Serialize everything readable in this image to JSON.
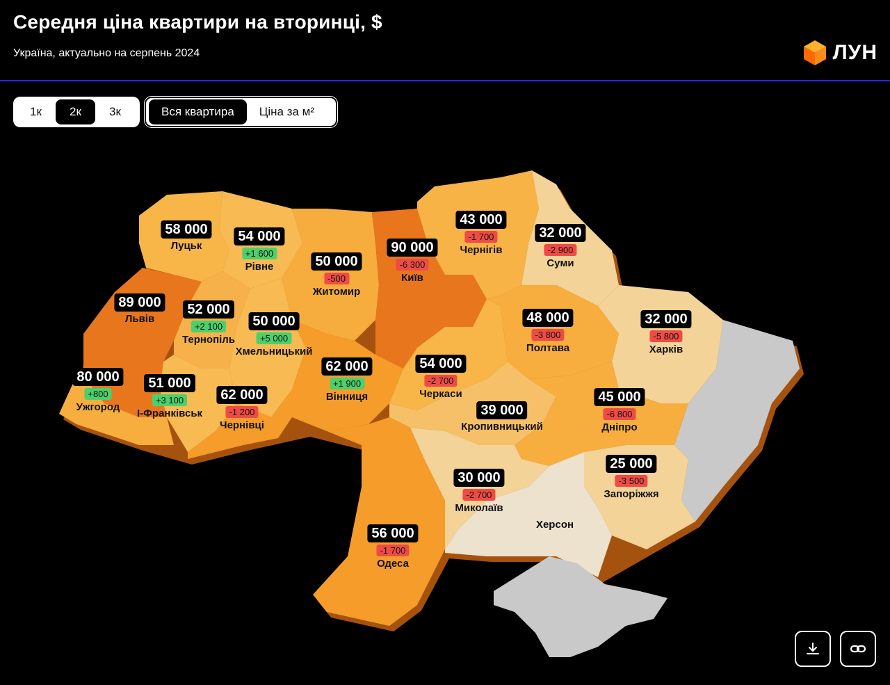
{
  "header": {
    "title": "Середня ціна квартири на вторинці, $",
    "subtitle": "Україна, актуально на серпень 2024",
    "logo_text": "ЛУН"
  },
  "room_tabs": [
    {
      "label": "1к",
      "active": false
    },
    {
      "label": "2к",
      "active": true
    },
    {
      "label": "3к",
      "active": false
    }
  ],
  "mode_tabs": [
    {
      "label": "Вся квартира",
      "active": true
    },
    {
      "label": "Ціна за м²",
      "active": false
    }
  ],
  "colors": {
    "dark_orange": "#e8761c",
    "orange": "#f59c2b",
    "light_orange": "#f8ba52",
    "pale": "#f3d398",
    "cream": "#ede2cd",
    "grey": "#c9c9c9",
    "negative": "#ef4b45",
    "positive": "#4cd06c"
  },
  "regions": [
    {
      "id": "lutsk",
      "price": "58 000",
      "delta": "",
      "city": "Луцьк"
    },
    {
      "id": "rivne",
      "price": "54 000",
      "delta": "+1 600",
      "city": "Рівне"
    },
    {
      "id": "zhytomyr",
      "price": "50 000",
      "delta": "-500",
      "city": "Житомир"
    },
    {
      "id": "kyiv",
      "price": "90 000",
      "delta": "-6 300",
      "city": "Київ"
    },
    {
      "id": "chernihiv",
      "price": "43 000",
      "delta": "-1 700",
      "city": "Чернігів"
    },
    {
      "id": "sumy",
      "price": "32 000",
      "delta": "-2 900",
      "city": "Суми"
    },
    {
      "id": "lviv",
      "price": "89 000",
      "delta": "",
      "city": "Львів"
    },
    {
      "id": "ternopil",
      "price": "52 000",
      "delta": "+2 100",
      "city": "Тернопіль"
    },
    {
      "id": "khmelnytskyi",
      "price": "50 000",
      "delta": "+5 000",
      "city": "Хмельницький"
    },
    {
      "id": "poltava",
      "price": "48 000",
      "delta": "-3 800",
      "city": "Полтава"
    },
    {
      "id": "kharkiv",
      "price": "32 000",
      "delta": "-5 800",
      "city": "Харків"
    },
    {
      "id": "vinnytsia",
      "price": "62 000",
      "delta": "+1 900",
      "city": "Вінниця"
    },
    {
      "id": "cherkasy",
      "price": "54 000",
      "delta": "-2 700",
      "city": "Черкаси"
    },
    {
      "id": "uzhhorod",
      "price": "80 000",
      "delta": "+800",
      "city": "Ужгород"
    },
    {
      "id": "ivano_frankivsk",
      "price": "51 000",
      "delta": "+3 100",
      "city": "І-Франківськ"
    },
    {
      "id": "chernivtsi",
      "price": "62 000",
      "delta": "-1 200",
      "city": "Чернівці"
    },
    {
      "id": "kropyvnytskyi",
      "price": "39 000",
      "delta": "",
      "city": "Кропивницький"
    },
    {
      "id": "dnipro",
      "price": "45 000",
      "delta": "-6 800",
      "city": "Дніпро"
    },
    {
      "id": "zaporizhzhia",
      "price": "25 000",
      "delta": "-3 500",
      "city": "Запоріжжя"
    },
    {
      "id": "mykolaiv",
      "price": "30 000",
      "delta": "-2 700",
      "city": "Миколаїв"
    },
    {
      "id": "odesa",
      "price": "56 000",
      "delta": "-1 700",
      "city": "Одеса"
    },
    {
      "id": "kherson",
      "price": "",
      "delta": "",
      "city": "Херсон"
    }
  ],
  "actions": {
    "download_icon": "download-icon",
    "link_icon": "link-icon"
  }
}
